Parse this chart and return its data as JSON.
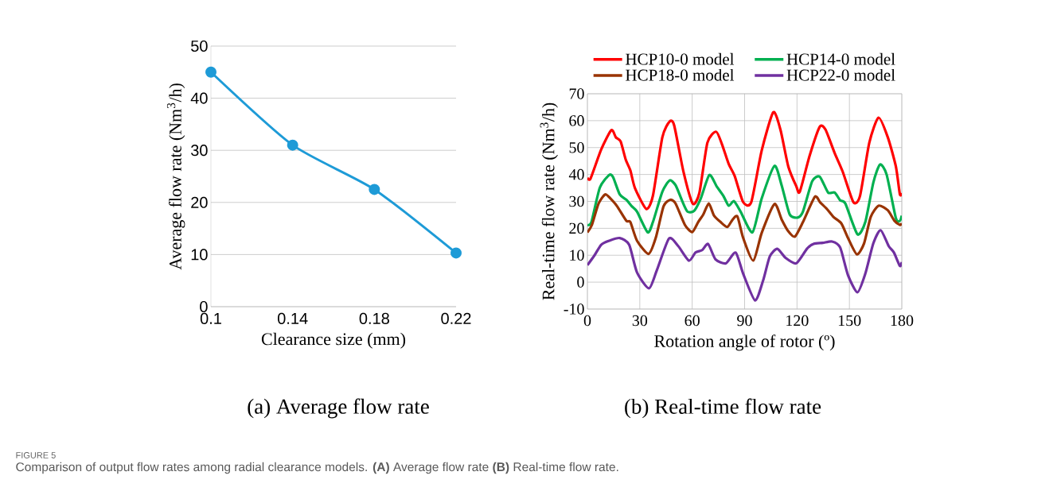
{
  "chart_data": [
    {
      "type": "line",
      "xlabel": "Clearance size (mm)",
      "ylabel": "Average flow rate (Nm$^{3}$/h)",
      "categories": [
        "0.1",
        "0.14",
        "0.18",
        "0.22"
      ],
      "series": [
        {
          "color": "#1e9bd7",
          "values": [
            45,
            31,
            22.5,
            10.3
          ]
        }
      ],
      "ylim": [
        0,
        50
      ],
      "yticks": [
        0,
        10,
        20,
        30,
        40,
        50
      ],
      "grid": "y",
      "marker": "circle",
      "annotations": [
        "(a) Average flow rate",
        "FIGURE 5",
        "Comparison of output flow rates among radial clearance models. **(A)** Average flow rate **(B)** Real-time flow rate."
      ]
    },
    {
      "type": "line",
      "xlabel": "Rotation angle of rotor (º)",
      "ylabel": "Real-time  flow rate  (Nm$^{3}$/h)",
      "xlim": [
        0,
        180
      ],
      "xticks": [
        0,
        30,
        60,
        90,
        120,
        150,
        180
      ],
      "ylim": [
        -10,
        70
      ],
      "yticks": [
        -10,
        0,
        10,
        20,
        30,
        40,
        50,
        60,
        70
      ],
      "grid": true,
      "legend": "top",
      "series": [
        {
          "name": "HCP10-0 model",
          "color": "#ff0000",
          "x": [
            0,
            1.8,
            7.9,
            13.7,
            16.3,
            19,
            22,
            24.6,
            27.2,
            33.7,
            37.5,
            42.9,
            47.1,
            49.7,
            55,
            60.3,
            64.1,
            68.7,
            73.7,
            77,
            80.9,
            84.3,
            89.2,
            93.8,
            99.8,
            106.4,
            110.5,
            115,
            119.6,
            121.6,
            127.2,
            133,
            136.3,
            141.6,
            146.2,
            152.3,
            156.1,
            161.4,
            166.7,
            172,
            176.6,
            178.9,
            180
          ],
          "values": [
            38.8,
            38.5,
            49.3,
            56.5,
            53.8,
            52.3,
            45.4,
            41.5,
            35,
            27.2,
            32.1,
            53.8,
            59.7,
            58.2,
            41,
            29.2,
            33.1,
            51.8,
            55.9,
            51.3,
            43.9,
            39.5,
            29.7,
            29.7,
            48.9,
            63.1,
            56.7,
            43,
            35.6,
            33.6,
            46.9,
            57.7,
            56.7,
            47.9,
            41,
            29.7,
            32.1,
            51.8,
            61.1,
            53.8,
            43,
            32.6,
            33.1
          ]
        },
        {
          "name": "HCP14-0 model",
          "color": "#00b050",
          "x": [
            0,
            2.3,
            7.1,
            12.5,
            14.7,
            18.5,
            22.3,
            25.4,
            28.4,
            34.5,
            37.5,
            42.9,
            47.1,
            50.5,
            54.3,
            57.3,
            61.1,
            64.9,
            69.8,
            74,
            77.8,
            80.9,
            83.9,
            87.7,
            94.5,
            99.8,
            107.1,
            111.2,
            115.8,
            120.4,
            123.4,
            128.7,
            133,
            137.8,
            141.6,
            144.7,
            147.7,
            154.6,
            159.1,
            163.7,
            167.5,
            171.3,
            176.6,
            178.9,
            180
          ],
          "values": [
            21.3,
            22.3,
            35.1,
            39.8,
            39,
            32.6,
            30.6,
            28.2,
            26.2,
            18.5,
            22.3,
            33.6,
            37.8,
            36,
            30.1,
            26.2,
            26.5,
            31.1,
            39.8,
            35.6,
            32.1,
            28.4,
            30.1,
            26.2,
            18.5,
            31.1,
            43.2,
            36,
            25.2,
            24,
            26.2,
            37.5,
            39.2,
            33.3,
            33.3,
            30.4,
            29.2,
            17.8,
            22.3,
            37,
            43.7,
            40,
            23.8,
            22.8,
            24.7
          ]
        },
        {
          "name": "HCP18-0 model",
          "color": "#993300",
          "x": [
            0,
            2.6,
            6.4,
            10.2,
            13.2,
            17,
            22.3,
            24.6,
            28.4,
            35,
            39.1,
            43.6,
            47.4,
            50.5,
            55.8,
            60,
            63.4,
            66.4,
            69.5,
            72.5,
            76.3,
            80.1,
            83.1,
            85.9,
            89.2,
            95,
            99.8,
            107.1,
            111.2,
            115,
            118.8,
            123.4,
            130.2,
            133.3,
            137.1,
            140.9,
            145.4,
            149.2,
            154.3,
            158.4,
            162.2,
            166.7,
            172,
            175.8,
            178.9,
            180
          ],
          "values": [
            18.5,
            21.3,
            29.2,
            32.6,
            31.1,
            28.2,
            22.8,
            22.3,
            15.4,
            10.5,
            16.4,
            28.2,
            30.6,
            29.2,
            21.3,
            18.6,
            22.3,
            25.2,
            29.2,
            24.7,
            22.3,
            20.5,
            23.2,
            24.4,
            16.4,
            8,
            18.3,
            29,
            23.3,
            18.9,
            16.9,
            22.3,
            31.7,
            29.6,
            27.2,
            24.2,
            21.8,
            16.4,
            10.3,
            14.4,
            24.2,
            28.4,
            26.7,
            22.8,
            21.3,
            21.8
          ]
        },
        {
          "name": "HCP22-0 model",
          "color": "#7030a0",
          "x": [
            0,
            4.1,
            7.9,
            12.5,
            18.5,
            23.9,
            28.4,
            35.3,
            39.8,
            46.7,
            52,
            58.1,
            61.9,
            65.7,
            69.1,
            73.3,
            79.3,
            84.9,
            89.2,
            96,
            100.6,
            104.4,
            108.7,
            113.5,
            119.6,
            125.7,
            129.5,
            134.8,
            140.1,
            144.7,
            149.2,
            154.6,
            159.1,
            163.7,
            167.9,
            172.5,
            175.5,
            178.9,
            180
          ],
          "values": [
            6.3,
            10,
            13.9,
            15.4,
            16.4,
            13.9,
            3.6,
            -2.3,
            4.5,
            16.2,
            13.4,
            8,
            11,
            11.9,
            14.2,
            8.5,
            7,
            11,
            3.1,
            -6.8,
            0.6,
            9.5,
            12.4,
            9,
            7,
            12.4,
            14.2,
            14.6,
            15.1,
            12.9,
            2.6,
            -3.8,
            3.1,
            14.4,
            19.3,
            13.4,
            11,
            6,
            7.5
          ]
        }
      ],
      "annotations": [
        "(b) Real-time flow rate"
      ]
    }
  ]
}
